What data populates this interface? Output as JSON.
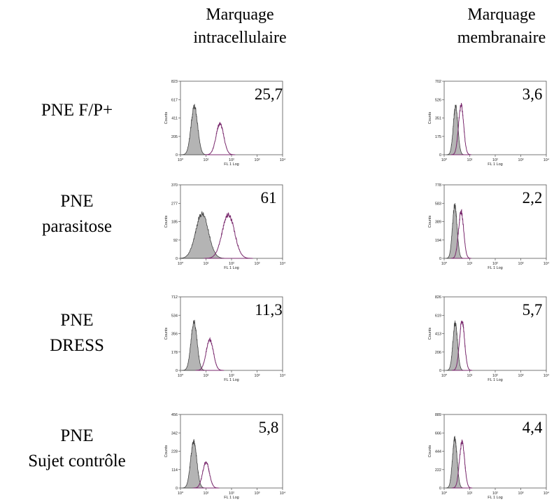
{
  "column_headers": [
    {
      "line1": "Marquage",
      "line2": "intracellulaire"
    },
    {
      "line1": "Marquage",
      "line2": "membranaire"
    }
  ],
  "row_labels": [
    {
      "line1": "PNE F/P+",
      "line2": ""
    },
    {
      "line1": "PNE",
      "line2": "parasitose"
    },
    {
      "line1": "PNE",
      "line2": "DRESS"
    },
    {
      "line1": "PNE",
      "line2": "Sujet contrôle"
    }
  ],
  "axis": {
    "xlabel": "FL 1 Log",
    "ylabel": "Counts",
    "xticks": [
      "10⁰",
      "10¹",
      "10²",
      "10³",
      "10⁴"
    ]
  },
  "chart_data": [
    {
      "type": "area",
      "row": "PNE F/P+",
      "column": "Marquage intracellulaire",
      "value": "25,7",
      "ylim": [
        0,
        823
      ],
      "yticks": [
        "0",
        "205",
        "411",
        "617",
        "823"
      ],
      "xscale": "log",
      "xlim": [
        1,
        10000
      ],
      "series": [
        {
          "name": "",
          "fill": "gray",
          "peak_x": 3.5,
          "peak_y": 540,
          "width": 0.13
        },
        {
          "name": "",
          "fill": "none",
          "peak_x": 35,
          "peak_y": 350,
          "width": 0.15
        }
      ]
    },
    {
      "type": "area",
      "row": "PNE F/P+",
      "column": "Marquage membranaire",
      "value": "3,6",
      "ylim": [
        0,
        702
      ],
      "yticks": [
        "0",
        "175",
        "351",
        "526",
        "702"
      ],
      "xscale": "log",
      "xlim": [
        1,
        10000
      ],
      "series": [
        {
          "name": "",
          "fill": "gray",
          "peak_x": 2.8,
          "peak_y": 460,
          "width": 0.09
        },
        {
          "name": "",
          "fill": "none",
          "peak_x": 4.6,
          "peak_y": 470,
          "width": 0.1
        }
      ]
    },
    {
      "type": "area",
      "row": "PNE parasitose",
      "column": "Marquage intracellulaire",
      "value": "61",
      "ylim": [
        0,
        370
      ],
      "yticks": [
        "0",
        "92",
        "185",
        "277",
        "370"
      ],
      "xscale": "log",
      "xlim": [
        1,
        10000
      ],
      "series": [
        {
          "name": "",
          "fill": "gray",
          "peak_x": 7,
          "peak_y": 225,
          "width": 0.25
        },
        {
          "name": "",
          "fill": "none",
          "peak_x": 75,
          "peak_y": 220,
          "width": 0.24
        }
      ]
    },
    {
      "type": "area",
      "row": "PNE parasitose",
      "column": "Marquage membranaire",
      "value": "2,2",
      "ylim": [
        0,
        778
      ],
      "yticks": [
        "0",
        "194",
        "389",
        "583",
        "778"
      ],
      "xscale": "log",
      "xlim": [
        1,
        10000
      ],
      "series": [
        {
          "name": "",
          "fill": "gray",
          "peak_x": 2.6,
          "peak_y": 560,
          "width": 0.09
        },
        {
          "name": "",
          "fill": "none",
          "peak_x": 4.6,
          "peak_y": 495,
          "width": 0.1
        }
      ]
    },
    {
      "type": "area",
      "row": "PNE DRESS",
      "column": "Marquage intracellulaire",
      "value": "11,3",
      "ylim": [
        0,
        712
      ],
      "yticks": [
        "0",
        "178",
        "356",
        "534",
        "712"
      ],
      "xscale": "log",
      "xlim": [
        1,
        10000
      ],
      "series": [
        {
          "name": "",
          "fill": "gray",
          "peak_x": 3.4,
          "peak_y": 470,
          "width": 0.12
        },
        {
          "name": "",
          "fill": "none",
          "peak_x": 14,
          "peak_y": 300,
          "width": 0.14
        }
      ]
    },
    {
      "type": "area",
      "row": "PNE DRESS",
      "column": "Marquage membranaire",
      "value": "5,7",
      "ylim": [
        0,
        826
      ],
      "yticks": [
        "0",
        "206",
        "413",
        "619",
        "826"
      ],
      "xscale": "log",
      "xlim": [
        1,
        10000
      ],
      "series": [
        {
          "name": "",
          "fill": "gray",
          "peak_x": 2.7,
          "peak_y": 530,
          "width": 0.09
        },
        {
          "name": "",
          "fill": "none",
          "peak_x": 5,
          "peak_y": 560,
          "width": 0.1
        }
      ]
    },
    {
      "type": "area",
      "row": "PNE Sujet contrôle",
      "column": "Marquage intracellulaire",
      "value": "5,8",
      "ylim": [
        0,
        456
      ],
      "yticks": [
        "0",
        "114",
        "228",
        "342",
        "456"
      ],
      "xscale": "log",
      "xlim": [
        1,
        10000
      ],
      "series": [
        {
          "name": "",
          "fill": "gray",
          "peak_x": 3.3,
          "peak_y": 290,
          "width": 0.12
        },
        {
          "name": "",
          "fill": "none",
          "peak_x": 10,
          "peak_y": 160,
          "width": 0.13
        }
      ]
    },
    {
      "type": "area",
      "row": "PNE Sujet contrôle",
      "column": "Marquage membranaire",
      "value": "4,4",
      "ylim": [
        0,
        889
      ],
      "yticks": [
        "0",
        "222",
        "444",
        "666",
        "889"
      ],
      "xscale": "log",
      "xlim": [
        1,
        10000
      ],
      "series": [
        {
          "name": "",
          "fill": "gray",
          "peak_x": 2.6,
          "peak_y": 600,
          "width": 0.09
        },
        {
          "name": "",
          "fill": "none",
          "peak_x": 5,
          "peak_y": 560,
          "width": 0.1
        }
      ]
    }
  ]
}
